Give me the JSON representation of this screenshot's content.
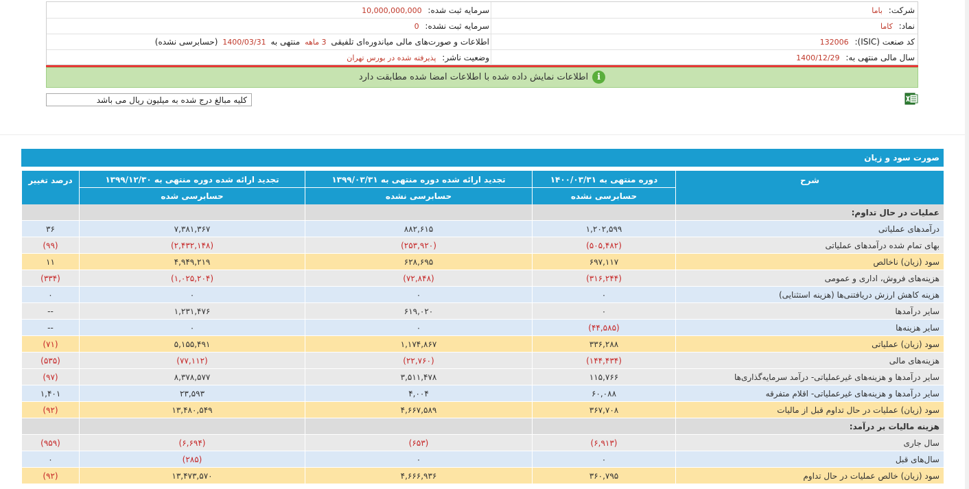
{
  "info": {
    "rows": [
      {
        "right_label": "شرکت:",
        "right_value": "باما",
        "left_label": "سرمایه ثبت شده:",
        "left_value": "10,000,000,000"
      },
      {
        "right_label": "نماد:",
        "right_value": "کاما",
        "left_label": "سرمایه ثبت نشده:",
        "left_value": "0"
      },
      {
        "right_label": "کد صنعت (ISIC):",
        "right_value": "132006",
        "left_text_1": "اطلاعات و صورت‌های مالی میاندوره‌ای تلفیقی",
        "left_value": "3 ماهه",
        "left_text_2": "منتهی به",
        "left_date": "1400/03/31",
        "left_text_3": "(حسابرسی نشده)"
      },
      {
        "right_label": "سال مالی منتهی به:",
        "right_value": "1400/12/29",
        "left_label": "وضعیت ناشر:",
        "left_value": "پذیرفته شده در بورس تهران"
      }
    ]
  },
  "notice": "اطلاعات نمایش داده شده با اطلاعات امضا شده مطابقت دارد",
  "unit_note": "کلیه مبالغ درج شده به میلیون ریال می باشد",
  "colors": {
    "header": "#1a9dd0",
    "notice": "#c6e3b0",
    "negative": "#c62828"
  },
  "table": {
    "title": "صورت سود و زیان",
    "headers": {
      "desc": "شرح",
      "col_a": "دوره منتهی به ۱۴۰۰/۰۳/۳۱",
      "col_a_sub": "حسابرسی نشده",
      "col_b": "تجدید ارائه شده دوره منتهی به ۱۳۹۹/۰۳/۳۱",
      "col_b_sub": "حسابرسی نشده",
      "col_c": "تجدید ارائه شده دوره منتهی به ۱۳۹۹/۱۲/۳۰",
      "col_c_sub": "حسابرسی شده",
      "col_d": "درصد تغییر"
    },
    "rows": [
      {
        "style": "section",
        "desc": "عملیات در حال تداوم:",
        "a": "",
        "b": "",
        "c": "",
        "d": ""
      },
      {
        "style": "blue",
        "desc": "درآمدهای عملیاتی",
        "a": "۱,۲۰۲,۵۹۹",
        "b": "۸۸۲,۶۱۵",
        "c": "۷,۳۸۱,۳۶۷",
        "d": "۳۶"
      },
      {
        "style": "gray",
        "desc": "بهای تمام شده درآمدهای عملیاتی",
        "a": "(۵۰۵,۴۸۲)",
        "b": "(۲۵۳,۹۲۰)",
        "c": "(۲,۴۳۲,۱۴۸)",
        "d": "(۹۹)"
      },
      {
        "style": "orange",
        "desc": "سود (زیان) ناخالص",
        "a": "۶۹۷,۱۱۷",
        "b": "۶۲۸,۶۹۵",
        "c": "۴,۹۴۹,۲۱۹",
        "d": "۱۱"
      },
      {
        "style": "gray",
        "desc": "هزینه‌های فروش، اداری و عمومی",
        "a": "(۳۱۶,۲۴۴)",
        "b": "(۷۲,۸۴۸)",
        "c": "(۱,۰۲۵,۲۰۴)",
        "d": "(۳۳۴)"
      },
      {
        "style": "blue",
        "desc": "هزینه کاهش ارزش دریافتنی‌ها (هزینه استثنایی)",
        "a": "۰",
        "b": "۰",
        "c": "۰",
        "d": "۰"
      },
      {
        "style": "gray",
        "desc": "سایر درآمدها",
        "a": "۰",
        "b": "۶۱۹,۰۲۰",
        "c": "۱,۲۳۱,۴۷۶",
        "d": "--"
      },
      {
        "style": "blue",
        "desc": "سایر هزینه‌ها",
        "a": "(۴۴,۵۸۵)",
        "b": "۰",
        "c": "۰",
        "d": "--"
      },
      {
        "style": "orange",
        "desc": "سود (زیان) عملیاتی",
        "a": "۳۳۶,۲۸۸",
        "b": "۱,۱۷۴,۸۶۷",
        "c": "۵,۱۵۵,۴۹۱",
        "d": "(۷۱)"
      },
      {
        "style": "gray",
        "desc": "هزینه‌های مالی",
        "a": "(۱۴۴,۴۳۴)",
        "b": "(۲۲,۷۶۰)",
        "c": "(۷۷,۱۱۲)",
        "d": "(۵۳۵)"
      },
      {
        "style": "gray",
        "desc": "سایر درآمدها و هزینه‌های غیرعملیاتی- درآمد سرمایه‌گذاری‌ها",
        "a": "۱۱۵,۷۶۶",
        "b": "۳,۵۱۱,۴۷۸",
        "c": "۸,۳۷۸,۵۷۷",
        "d": "(۹۷)"
      },
      {
        "style": "blue",
        "desc": "سایر درآمدها و هزینه‌های غیرعملیاتی- اقلام متفرقه",
        "a": "۶۰,۰۸۸",
        "b": "۴,۰۰۴",
        "c": "۲۳,۵۹۳",
        "d": "۱,۴۰۱"
      },
      {
        "style": "orange",
        "desc": "سود (زیان) عملیات در حال تداوم قبل از مالیات",
        "a": "۳۶۷,۷۰۸",
        "b": "۴,۶۶۷,۵۸۹",
        "c": "۱۳,۴۸۰,۵۴۹",
        "d": "(۹۲)"
      },
      {
        "style": "section",
        "desc": "هزینه مالیات بر درآمد:",
        "a": "",
        "b": "",
        "c": "",
        "d": ""
      },
      {
        "style": "gray",
        "desc": "سال جاری",
        "a": "(۶,۹۱۳)",
        "b": "(۶۵۳)",
        "c": "(۶,۶۹۴)",
        "d": "(۹۵۹)"
      },
      {
        "style": "blue",
        "desc": "سال‌های قبل",
        "a": "۰",
        "b": "۰",
        "c": "(۲۸۵)",
        "d": "۰"
      },
      {
        "style": "orange",
        "desc": "سود (زیان) خالص عملیات در حال تداوم",
        "a": "۳۶۰,۷۹۵",
        "b": "۴,۶۶۶,۹۳۶",
        "c": "۱۳,۴۷۳,۵۷۰",
        "d": "(۹۲)"
      }
    ]
  }
}
